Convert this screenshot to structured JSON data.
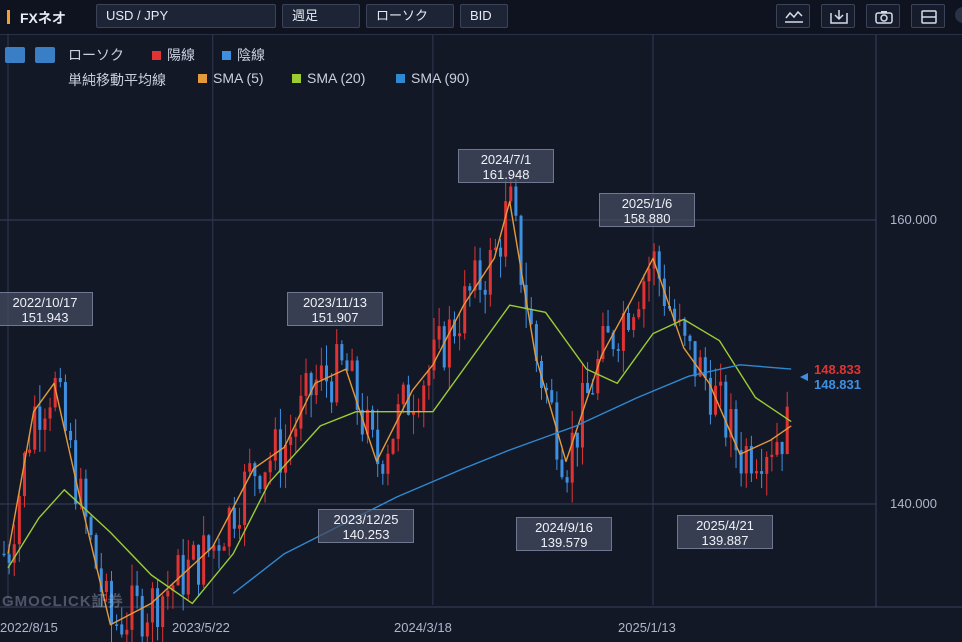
{
  "toolbar": {
    "brand": "FXネオ",
    "symbol": "USD / JPY",
    "period": "週足",
    "chart_type": "ローソク",
    "price_type": "BID",
    "tools": [
      "indicator-icon",
      "import-icon",
      "camera-icon",
      "layout-icon"
    ]
  },
  "legend": {
    "type_label": "ローソク",
    "up_label": "陽線",
    "down_label": "陰線",
    "ma_label": "単純移動平均線",
    "sma5": "SMA (5)",
    "sma20": "SMA (20)",
    "sma90": "SMA (90)"
  },
  "colors": {
    "up": "#e03434",
    "down": "#3f8fe0",
    "sma5": "#e39a3a",
    "sma20": "#9ccc34",
    "sma90": "#2f89d0",
    "background": "#131827"
  },
  "annotations": [
    {
      "date": "2022/10/17",
      "value": "151.943"
    },
    {
      "date": "2023/11/13",
      "value": "151.907"
    },
    {
      "date": "2024/7/1",
      "value": "161.948"
    },
    {
      "date": "2025/1/6",
      "value": "158.880"
    },
    {
      "date": "2023/12/25",
      "value": "140.253"
    },
    {
      "date": "2024/9/16",
      "value": "139.579"
    },
    {
      "date": "2025/4/21",
      "value": "139.887"
    }
  ],
  "last_prices": {
    "ask_like": "148.833",
    "bid": "148.831"
  },
  "watermark": "GMOCLICK証券",
  "chart_data": {
    "type": "line",
    "title": "",
    "y_ticks": [
      "140.000",
      "160.000"
    ],
    "x_ticks": [
      "2022/8/15",
      "2023/5/22",
      "2024/3/18",
      "2025/1/13"
    ],
    "ylim": [
      133.4,
      169.0
    ],
    "series": [
      {
        "name": "SMA (5)",
        "points": [
          [
            "2022/8/15",
            136.5
          ],
          [
            "2022/9/19",
            146.5
          ],
          [
            "2022/10/17",
            148.5
          ],
          [
            "2022/11/21",
            140.5
          ],
          [
            "2023/1/2",
            131.5
          ],
          [
            "2023/2/27",
            133.0
          ],
          [
            "2023/5/22",
            137.0
          ],
          [
            "2023/7/17",
            142.5
          ],
          [
            "2023/8/28",
            144.0
          ],
          [
            "2023/10/9",
            148.5
          ],
          [
            "2023/11/20",
            149.5
          ],
          [
            "2024/1/1",
            143.0
          ],
          [
            "2024/2/19",
            148.0
          ],
          [
            "2024/3/18",
            149.8
          ],
          [
            "2024/4/29",
            154.0
          ],
          [
            "2024/6/10",
            157.3
          ],
          [
            "2024/7/1",
            161.3
          ],
          [
            "2024/8/5",
            150.5
          ],
          [
            "2024/9/16",
            143.0
          ],
          [
            "2024/11/4",
            150.5
          ],
          [
            "2024/12/16",
            154.5
          ],
          [
            "2025/1/13",
            157.3
          ],
          [
            "2025/2/24",
            151.0
          ],
          [
            "2025/3/31",
            148.5
          ],
          [
            "2025/5/12",
            143.5
          ],
          [
            "2025/6/23",
            144.5
          ],
          [
            "2025/7/21",
            145.5
          ]
        ]
      },
      {
        "name": "SMA (20)",
        "points": [
          [
            "2022/8/15",
            135.5
          ],
          [
            "2022/9/26",
            139.0
          ],
          [
            "2022/10/31",
            141.0
          ],
          [
            "2023/1/2",
            138.0
          ],
          [
            "2023/2/27",
            135.0
          ],
          [
            "2023/4/24",
            133.0
          ],
          [
            "2023/6/19",
            136.5
          ],
          [
            "2023/8/7",
            141.5
          ],
          [
            "2023/10/16",
            145.5
          ],
          [
            "2023/12/4",
            146.5
          ],
          [
            "2024/1/29",
            146.5
          ],
          [
            "2024/3/18",
            146.5
          ],
          [
            "2024/5/6",
            150.0
          ],
          [
            "2024/7/1",
            154.0
          ],
          [
            "2024/8/19",
            153.5
          ],
          [
            "2024/10/14",
            149.5
          ],
          [
            "2024/11/25",
            148.5
          ],
          [
            "2025/1/13",
            152.0
          ],
          [
            "2025/2/24",
            153.0
          ],
          [
            "2025/4/14",
            151.5
          ],
          [
            "2025/6/2",
            147.5
          ],
          [
            "2025/7/21",
            145.8
          ]
        ]
      },
      {
        "name": "SMA (90)",
        "points": [
          [
            "2023/6/19",
            133.7
          ],
          [
            "2023/8/28",
            136.5
          ],
          [
            "2023/11/13",
            138.5
          ],
          [
            "2024/1/29",
            140.5
          ],
          [
            "2024/4/29",
            142.5
          ],
          [
            "2024/7/1",
            143.8
          ],
          [
            "2024/9/30",
            145.5
          ],
          [
            "2024/12/23",
            147.5
          ],
          [
            "2025/3/3",
            149.0
          ],
          [
            "2025/5/12",
            149.8
          ],
          [
            "2025/7/21",
            149.5
          ]
        ]
      }
    ],
    "candles": {
      "type": "candlestick",
      "period": "weekly",
      "up_color": "#e03434",
      "down_color": "#3f8fe0"
    },
    "grid": true,
    "legend": "top-left"
  }
}
